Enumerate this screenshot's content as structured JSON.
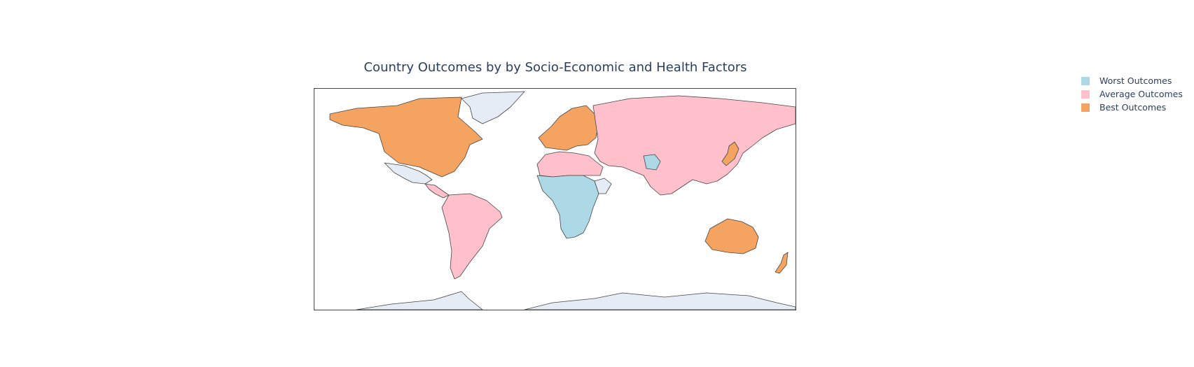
{
  "title": "Country Outcomes by by Socio-Economic and Health Factors",
  "legend": [
    {
      "label": "Worst Outcomes",
      "color": "#add8e6"
    },
    {
      "label": "Average Outcomes",
      "color": "#ffc0cb"
    },
    {
      "label": "Best Outcomes",
      "color": "#f4a460"
    }
  ],
  "no_data_color": "#e5ecf6",
  "regions": [
    {
      "name": "North America",
      "category": "Best Outcomes"
    },
    {
      "name": "Greenland",
      "category": "No data"
    },
    {
      "name": "Mexico",
      "category": "No data"
    },
    {
      "name": "Central America",
      "category": "Average Outcomes"
    },
    {
      "name": "South America",
      "category": "Average Outcomes"
    },
    {
      "name": "Europe",
      "category": "Best Outcomes"
    },
    {
      "name": "Russia and Asia",
      "category": "Average Outcomes"
    },
    {
      "name": "North Africa",
      "category": "Average Outcomes"
    },
    {
      "name": "Sub-Saharan Africa",
      "category": "Worst Outcomes"
    },
    {
      "name": "Horn of Africa",
      "category": "No data"
    },
    {
      "name": "Afghanistan",
      "category": "Worst Outcomes"
    },
    {
      "name": "Japan",
      "category": "Best Outcomes"
    },
    {
      "name": "Australia",
      "category": "Best Outcomes"
    },
    {
      "name": "New Zealand",
      "category": "Best Outcomes"
    },
    {
      "name": "Antarctica",
      "category": "No data"
    }
  ]
}
